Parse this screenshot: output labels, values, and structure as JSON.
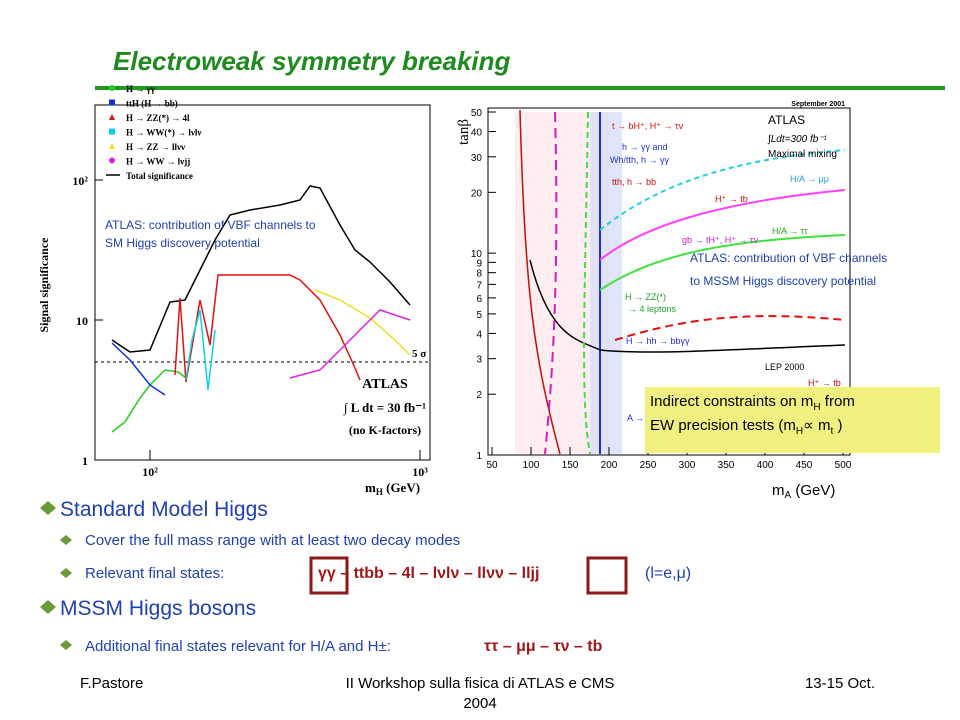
{
  "header": {
    "title": "Electroweak symmetry breaking"
  },
  "left_plot": {
    "y_label": "Signal significance",
    "x_label": [
      "m",
      "H",
      " (GeV)"
    ],
    "y_ticks": [
      1,
      10,
      {
        "value": 100,
        "label": "10²"
      }
    ],
    "x_ticks": [
      {
        "value": 100,
        "label": "10²"
      },
      {
        "value": 1000,
        "label": "10³"
      }
    ],
    "legend": [
      "H → γγ",
      "ttH (H → bb)",
      "H → ZZ(*) → 4l",
      "H → WW(*) → lνlν",
      "H → ZZ → llνν",
      "H → WW → lνjj",
      "Total significance"
    ],
    "caption": [
      "ATLAS: contribution of VBF channels to",
      "SM Higgs discovery potential"
    ],
    "experiment": "ATLAS",
    "luminosity": "∫ L dt = 30 fb⁻¹",
    "note": "(no K-factors)",
    "threshold": "5 σ"
  },
  "right_plot": {
    "y_label": "tanβ",
    "x_label": [
      "m",
      "A",
      " (GeV)"
    ],
    "y_ticks": [
      50,
      40,
      30,
      20,
      10,
      9,
      8,
      7,
      6,
      5,
      4,
      3,
      2,
      1
    ],
    "x_ticks": [
      50,
      100,
      150,
      200,
      250,
      300,
      350,
      400,
      450,
      500
    ],
    "date": "September 2001",
    "experiment": "ATLAS",
    "luminosity": "∫Ldt=300 fb⁻¹",
    "mixing": "Maximal mixing",
    "channels": [
      "t → bH⁺, H⁺ → τν",
      "h → γγ and",
      "Wh/tth, h → γγ",
      "tth, h → bb",
      "H/A → μμ",
      "H⁺ → tb",
      "H/A → ττ",
      "gb → tH⁺, H⁺ → τν",
      "H → ZZ(*)",
      "→ 4 leptons",
      "H → hh → bbγγ",
      "LEP 2000",
      "H⁺ → tb",
      "A →"
    ],
    "caption": [
      "ATLAS: contribution of VBF channels",
      "to MSSM Higgs discovery potential"
    ]
  },
  "note_box": {
    "line1": [
      "Indirect constraints on m",
      "H",
      " from"
    ],
    "line2": [
      "EW precision tests (m",
      "H",
      "∝ m",
      "t",
      " )"
    ]
  },
  "bullets": [
    {
      "text": "Standard Model Higgs",
      "items": [
        {
          "text": "Cover the full mass range with at least two decay modes"
        },
        {
          "text": "Relevant final states:",
          "channels": "γγ – ttbb – 4l – lνlν – llνν – lljj",
          "note": "(l=e,μ)"
        }
      ]
    },
    {
      "text": "MSSM Higgs bosons",
      "items": [
        {
          "text": "Additional final states relevant for H/A and H±:",
          "channels": "ττ – μμ – τν – tb"
        }
      ]
    }
  ],
  "footer": {
    "author": "F.Pastore",
    "event": [
      "II Workshop sulla fisica di ATLAS e CMS",
      "2004"
    ],
    "date": "13-15 Oct."
  }
}
